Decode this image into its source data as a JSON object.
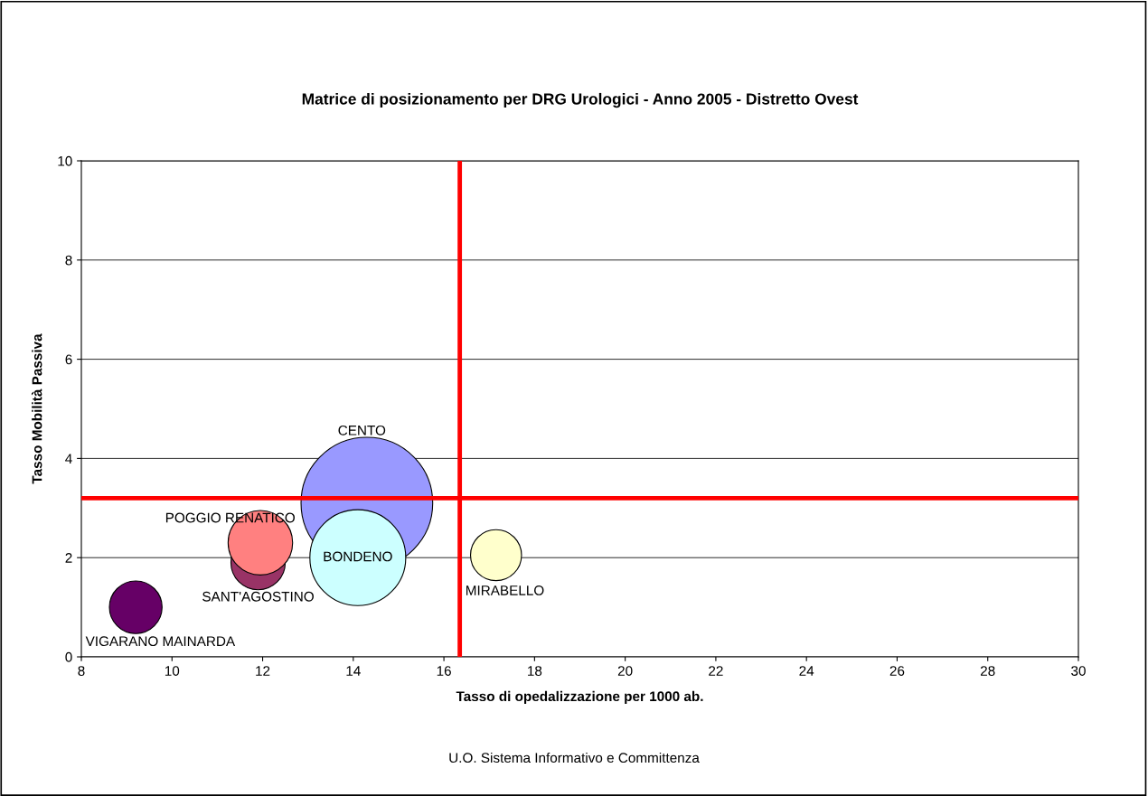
{
  "chart_data": {
    "type": "bubble",
    "title": "Matrice di posizionamento per DRG Urologici - Anno 2005 - Distretto Ovest",
    "xlabel": "Tasso di opedalizzazione per 1000 ab.",
    "ylabel": "Tasso Mobilità Passiva",
    "series": [
      {
        "name": "VIGARANO MAINARDA",
        "color": "#660066",
        "x": [
          9.2
        ],
        "values": [
          1.0
        ],
        "sizes": [
          0.16
        ]
      },
      {
        "name": "SANT'AGOSTINO",
        "color": "#993366",
        "x": [
          11.9
        ],
        "values": [
          1.9
        ],
        "sizes": [
          0.17
        ]
      },
      {
        "name": "POGGIO RENATICO",
        "color": "#ff8080",
        "x": [
          11.95
        ],
        "values": [
          2.3
        ],
        "sizes": [
          0.24
        ]
      },
      {
        "name": "CENTO",
        "color": "#9999ff",
        "x": [
          14.3
        ],
        "values": [
          3.1
        ],
        "sizes": [
          1
        ]
      },
      {
        "name": "BONDENO",
        "color": "#ccffff",
        "x": [
          14.1
        ],
        "values": [
          2.0
        ],
        "sizes": [
          0.53
        ]
      },
      {
        "name": "MIRABELLO",
        "color": "#ffffcc",
        "x": [
          17.15
        ],
        "values": [
          2.05
        ],
        "sizes": [
          0.15
        ]
      }
    ],
    "xlim": [
      8,
      30
    ],
    "xticks": [
      8,
      10,
      12,
      14,
      16,
      18,
      20,
      22,
      24,
      26,
      28,
      30
    ],
    "ylim": [
      0,
      10
    ],
    "yticks": [
      0,
      2,
      4,
      6,
      8,
      10
    ],
    "grid": "y",
    "legend": false,
    "ref_lines": [
      {
        "axis": "x",
        "value": 16.35,
        "color": "#ff0000"
      },
      {
        "axis": "y",
        "value": 3.2,
        "color": "#ff0000"
      }
    ],
    "annotations": [
      "U.O. Sistema Informativo e Committenza"
    ]
  }
}
